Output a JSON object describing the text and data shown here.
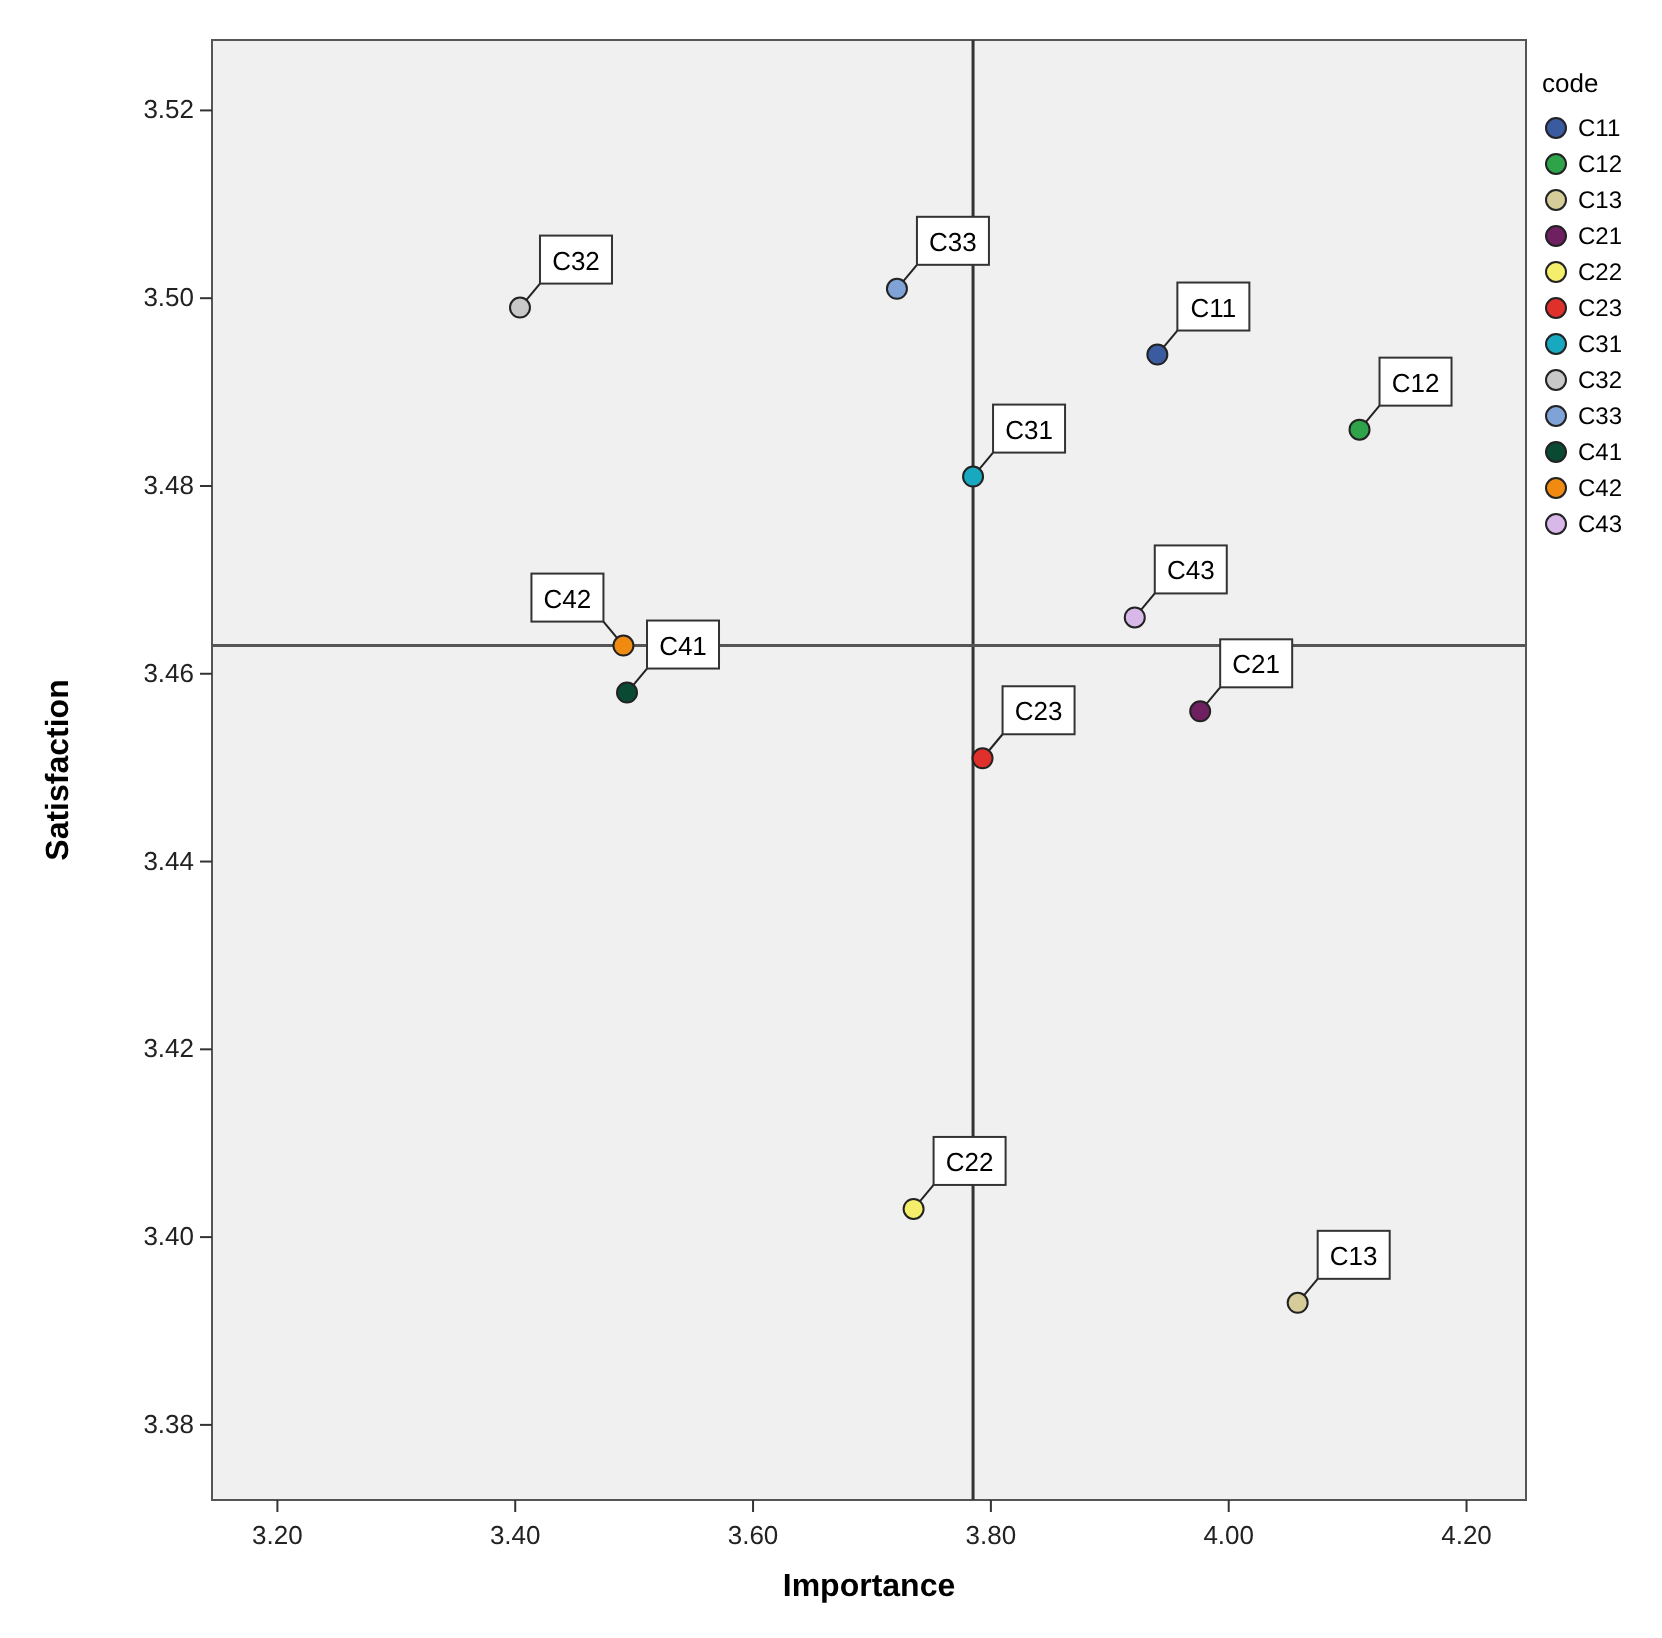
{
  "chart_data": {
    "type": "scatter",
    "xlabel": "Importance",
    "ylabel": "Satisfaction",
    "legend_title": "code",
    "legend": "right",
    "marker": "circle",
    "grid": false,
    "xlim": [
      3.145,
      4.25
    ],
    "xticks": [
      {
        "value": 3.2,
        "label": "3.20"
      },
      {
        "value": 3.4,
        "label": "3.40"
      },
      {
        "value": 3.6,
        "label": "3.60"
      },
      {
        "value": 3.8,
        "label": "3.80"
      },
      {
        "value": 4.0,
        "label": "4.00"
      },
      {
        "value": 4.2,
        "label": "4.20"
      }
    ],
    "ylim": [
      3.372,
      3.5275
    ],
    "yticks": [
      {
        "value": 3.38,
        "label": "3.38"
      },
      {
        "value": 3.4,
        "label": "3.40"
      },
      {
        "value": 3.42,
        "label": "3.42"
      },
      {
        "value": 3.44,
        "label": "3.44"
      },
      {
        "value": 3.46,
        "label": "3.46"
      },
      {
        "value": 3.48,
        "label": "3.48"
      },
      {
        "value": 3.5,
        "label": "3.50"
      },
      {
        "value": 3.52,
        "label": "3.52"
      }
    ],
    "ref_lines": [
      {
        "axis": "x",
        "value": 3.785,
        "color": "#333333"
      },
      {
        "axis": "y",
        "value": 3.463,
        "color": "#555555"
      }
    ],
    "series": [
      {
        "name": "C11",
        "color": "#3a5ba0",
        "x": [
          3.94
        ],
        "values": [
          3.494
        ]
      },
      {
        "name": "C12",
        "color": "#2ea34a",
        "x": [
          4.11
        ],
        "values": [
          3.486
        ]
      },
      {
        "name": "C13",
        "color": "#d5cc9a",
        "x": [
          4.058
        ],
        "values": [
          3.393
        ]
      },
      {
        "name": "C21",
        "color": "#6e2060",
        "x": [
          3.976
        ],
        "values": [
          3.456
        ]
      },
      {
        "name": "C22",
        "color": "#f5ee6c",
        "x": [
          3.735
        ],
        "values": [
          3.403
        ]
      },
      {
        "name": "C23",
        "color": "#e0302c",
        "x": [
          3.793
        ],
        "values": [
          3.451
        ]
      },
      {
        "name": "C31",
        "color": "#18a9c0",
        "x": [
          3.785
        ],
        "values": [
          3.481
        ]
      },
      {
        "name": "C32",
        "color": "#c8c8c8",
        "x": [
          3.404
        ],
        "values": [
          3.499
        ]
      },
      {
        "name": "C33",
        "color": "#7fa3d6",
        "x": [
          3.721
        ],
        "values": [
          3.501
        ]
      },
      {
        "name": "C41",
        "color": "#0a4a32",
        "x": [
          3.494
        ],
        "values": [
          3.458
        ]
      },
      {
        "name": "C42",
        "color": "#f08a10",
        "x": [
          3.491
        ],
        "values": [
          3.463
        ]
      },
      {
        "name": "C43",
        "color": "#d8b8e8",
        "x": [
          3.921
        ],
        "values": [
          3.466
        ]
      }
    ]
  }
}
